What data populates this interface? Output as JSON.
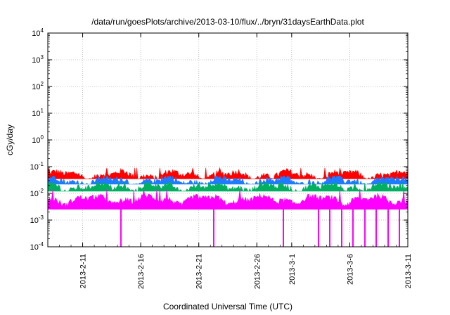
{
  "chart_data": {
    "type": "area",
    "title": "/data/run/goesPlots/archive/2013-03-10/flux/../bryn/31daysEarthData.plot",
    "xlabel": "Coordinated Universal Time (UTC)",
    "ylabel": "cGy/day",
    "y_scale": "log",
    "ylim": [
      0.0001,
      10000
    ],
    "xlim": [
      "2013-02-08",
      "2013-03-11"
    ],
    "grid": true,
    "legend": "none",
    "y_ticks": [
      {
        "value": 0.0001,
        "base": "10",
        "exp": "-4"
      },
      {
        "value": 0.001,
        "base": "10",
        "exp": "-3"
      },
      {
        "value": 0.01,
        "base": "10",
        "exp": "-2"
      },
      {
        "value": 0.1,
        "base": "10",
        "exp": "-1"
      },
      {
        "value": 1,
        "base": "10",
        "exp": "0"
      },
      {
        "value": 10,
        "base": "10",
        "exp": "1"
      },
      {
        "value": 100,
        "base": "10",
        "exp": "2"
      },
      {
        "value": 1000,
        "base": "10",
        "exp": "3"
      },
      {
        "value": 10000,
        "base": "10",
        "exp": "4"
      }
    ],
    "x_ticks": [
      {
        "value": "2013-02-11",
        "label": "2013-2-11"
      },
      {
        "value": "2013-02-16",
        "label": "2013-2-16"
      },
      {
        "value": "2013-02-21",
        "label": "2013-2-21"
      },
      {
        "value": "2013-02-26",
        "label": "2013-2-26"
      },
      {
        "value": "2013-03-01",
        "label": "2013-3-1"
      },
      {
        "value": "2013-03-06",
        "label": "2013-3-6"
      },
      {
        "value": "2013-03-11",
        "label": "2013-3-11"
      }
    ],
    "series": [
      {
        "color": "#ff0000",
        "typical_value": 0.05,
        "range": [
          0.035,
          0.09
        ]
      },
      {
        "color": "#1e7bff",
        "typical_value": 0.03,
        "range": [
          0.022,
          0.045
        ]
      },
      {
        "color": "#00b060",
        "typical_value": 0.018,
        "range": [
          0.012,
          0.025
        ]
      },
      {
        "color": "#ff00ff",
        "typical_value": 0.006,
        "range": [
          0.003,
          0.014
        ]
      }
    ],
    "dropouts_to_min": [
      "2013-02-14",
      "2013-02-22",
      "2013-02-28",
      "2013-03-03",
      "2013-03-04",
      "2013-03-05",
      "2013-03-06",
      "2013-03-07",
      "2013-03-08",
      "2013-03-09",
      "2013-03-10"
    ]
  }
}
